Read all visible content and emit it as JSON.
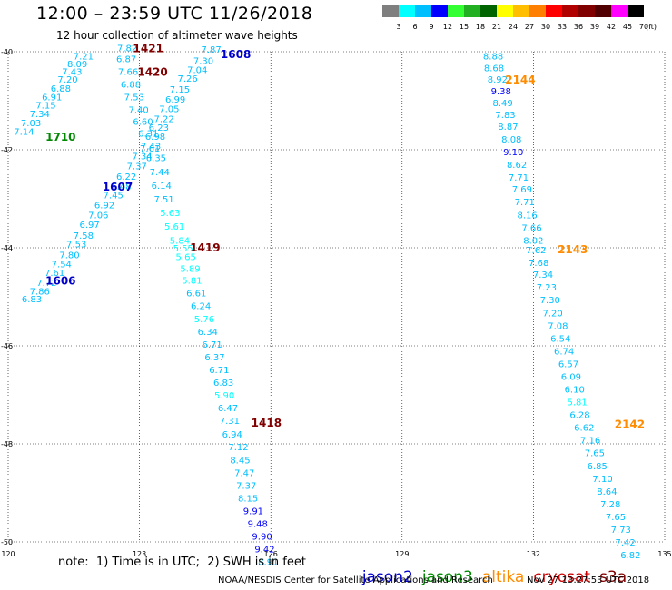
{
  "header": {
    "title": "12:00 – 23:59 UTC 11/26/2018",
    "subtitle": "12 hour collection of altimeter wave heights"
  },
  "legend": {
    "unit": "(ft)",
    "ticks": [
      "3",
      "6",
      "9",
      "12",
      "15",
      "18",
      "21",
      "24",
      "27",
      "30",
      "33",
      "36",
      "39",
      "42",
      "45",
      "70"
    ],
    "colors": [
      "#7f7f7f",
      "#00ffff",
      "#00bfff",
      "#0000ff",
      "#33ff33",
      "#22b022",
      "#006400",
      "#ffff00",
      "#ffbf00",
      "#ff8000",
      "#ff0000",
      "#b00000",
      "#800000",
      "#500000",
      "#ff00ff",
      "#000000"
    ]
  },
  "footer": {
    "note": "note:  1) Time is in UTC;  2) SWH is in feet",
    "satellites": [
      {
        "name": "jason2",
        "color": "#0000cc"
      },
      {
        "name": "jason3",
        "color": "#008800"
      },
      {
        "name": "altika",
        "color": "#ff8c00"
      },
      {
        "name": "cryosat",
        "color": "#cc0000"
      },
      {
        "name": "s3a",
        "color": "#800000"
      }
    ],
    "credit": "NOAA/NESDIS Center for Satellite Applications and Research",
    "timestamp": "Nov 27 13:27:53 UTC 2018"
  },
  "chart_data": {
    "type": "scatter",
    "title": "12:00 – 23:59 UTC 11/26/2018",
    "subtitle": "12 hour collection of altimeter wave heights",
    "xlabel": "",
    "ylabel": "",
    "xlim": [
      120,
      135
    ],
    "ylim": [
      -50,
      -40
    ],
    "x_ticks": [
      "120",
      "123",
      "126",
      "129",
      "132",
      "135"
    ],
    "y_ticks": [
      "-40",
      "-42",
      "-44",
      "-46",
      "-48",
      "-50"
    ],
    "grid": true,
    "legend_placement": "bottom",
    "pass_labels": [
      {
        "label": "1421",
        "x": 123.2,
        "y": -39.92,
        "color": "#800000"
      },
      {
        "label": "1420",
        "x": 123.3,
        "y": -40.4,
        "color": "#800000"
      },
      {
        "label": "1608",
        "x": 125.2,
        "y": -40.04,
        "color": "#0000cc"
      },
      {
        "label": "1710",
        "x": 121.2,
        "y": -41.72,
        "color": "#008800"
      },
      {
        "label": "1607",
        "x": 122.5,
        "y": -42.74,
        "color": "#0000cc"
      },
      {
        "label": "1419",
        "x": 124.5,
        "y": -43.98,
        "color": "#800000"
      },
      {
        "label": "1606",
        "x": 121.2,
        "y": -44.66,
        "color": "#0000cc"
      },
      {
        "label": "1418",
        "x": 125.9,
        "y": -47.56,
        "color": "#800000"
      },
      {
        "label": "2144",
        "x": 131.7,
        "y": -40.56,
        "color": "#ff8c00"
      },
      {
        "label": "2143",
        "x": 132.9,
        "y": -44.02,
        "color": "#ff8c00"
      },
      {
        "label": "2142",
        "x": 134.2,
        "y": -47.58,
        "color": "#ff8c00"
      }
    ],
    "points": [
      {
        "x": 122.72,
        "y": -39.92,
        "v": "7.82"
      },
      {
        "x": 122.7,
        "y": -40.14,
        "v": "6.87"
      },
      {
        "x": 122.74,
        "y": -40.4,
        "v": "7.66"
      },
      {
        "x": 122.8,
        "y": -40.66,
        "v": "6.88"
      },
      {
        "x": 122.88,
        "y": -40.92,
        "v": "7.53"
      },
      {
        "x": 122.98,
        "y": -41.18,
        "v": "7.40"
      },
      {
        "x": 123.08,
        "y": -41.42,
        "v": "6.60"
      },
      {
        "x": 123.2,
        "y": -41.66,
        "v": "6.31"
      },
      {
        "x": 123.26,
        "y": -41.92,
        "v": "7.43"
      },
      {
        "x": 123.38,
        "y": -42.16,
        "v": "6.35"
      },
      {
        "x": 123.46,
        "y": -42.44,
        "v": "7.44"
      },
      {
        "x": 123.5,
        "y": -42.72,
        "v": "6.14"
      },
      {
        "x": 123.56,
        "y": -43.0,
        "v": "7.51"
      },
      {
        "x": 123.7,
        "y": -43.28,
        "v": "5.63"
      },
      {
        "x": 123.8,
        "y": -43.56,
        "v": "5.61"
      },
      {
        "x": 123.92,
        "y": -43.84,
        "v": "5.84"
      },
      {
        "x": 124.0,
        "y": -44.0,
        "v": "5.55"
      },
      {
        "x": 124.06,
        "y": -44.18,
        "v": "5.65"
      },
      {
        "x": 124.16,
        "y": -44.42,
        "v": "5.89"
      },
      {
        "x": 124.2,
        "y": -44.66,
        "v": "5.81"
      },
      {
        "x": 124.3,
        "y": -44.92,
        "v": "6.61"
      },
      {
        "x": 124.4,
        "y": -45.18,
        "v": "6.24"
      },
      {
        "x": 124.48,
        "y": -45.44,
        "v": "5.76"
      },
      {
        "x": 124.56,
        "y": -45.7,
        "v": "6.34"
      },
      {
        "x": 124.66,
        "y": -45.96,
        "v": "6.71"
      },
      {
        "x": 124.72,
        "y": -46.22,
        "v": "6.37"
      },
      {
        "x": 124.82,
        "y": -46.48,
        "v": "6.71"
      },
      {
        "x": 124.92,
        "y": -46.74,
        "v": "6.83"
      },
      {
        "x": 124.94,
        "y": -47.0,
        "v": "5.90"
      },
      {
        "x": 125.02,
        "y": -47.26,
        "v": "6.47"
      },
      {
        "x": 125.06,
        "y": -47.52,
        "v": "7.31"
      },
      {
        "x": 125.12,
        "y": -47.8,
        "v": "6.94"
      },
      {
        "x": 125.26,
        "y": -48.06,
        "v": "7.12"
      },
      {
        "x": 125.3,
        "y": -48.32,
        "v": "8.45"
      },
      {
        "x": 125.4,
        "y": -48.58,
        "v": "7.47"
      },
      {
        "x": 125.44,
        "y": -48.84,
        "v": "7.37"
      },
      {
        "x": 125.48,
        "y": -49.1,
        "v": "8.15"
      },
      {
        "x": 125.6,
        "y": -49.36,
        "v": "9.91"
      },
      {
        "x": 125.7,
        "y": -49.62,
        "v": "9.48"
      },
      {
        "x": 125.8,
        "y": -49.88,
        "v": "9.90"
      },
      {
        "x": 125.86,
        "y": -50.14,
        "v": "9.42"
      },
      {
        "x": 125.94,
        "y": -50.4,
        "v": "8.91"
      },
      {
        "x": 124.64,
        "y": -39.94,
        "v": "7.87"
      },
      {
        "x": 124.46,
        "y": -40.18,
        "v": "7.30"
      },
      {
        "x": 124.32,
        "y": -40.36,
        "v": "7.04"
      },
      {
        "x": 124.1,
        "y": -40.54,
        "v": "7.26"
      },
      {
        "x": 123.92,
        "y": -40.76,
        "v": "7.15"
      },
      {
        "x": 123.82,
        "y": -40.96,
        "v": "6.99"
      },
      {
        "x": 123.68,
        "y": -41.16,
        "v": "7.05"
      },
      {
        "x": 123.56,
        "y": -41.36,
        "v": "7.22"
      },
      {
        "x": 123.44,
        "y": -41.54,
        "v": "6.23"
      },
      {
        "x": 123.36,
        "y": -41.72,
        "v": "6.98"
      },
      {
        "x": 123.24,
        "y": -41.96,
        "v": "7.61"
      },
      {
        "x": 123.06,
        "y": -42.12,
        "v": "7.34"
      },
      {
        "x": 122.94,
        "y": -42.32,
        "v": "7.37"
      },
      {
        "x": 122.7,
        "y": -42.54,
        "v": "6.22"
      },
      {
        "x": 122.58,
        "y": -42.74,
        "v": "6.48"
      },
      {
        "x": 122.4,
        "y": -42.92,
        "v": "7.45"
      },
      {
        "x": 122.2,
        "y": -43.12,
        "v": "6.92"
      },
      {
        "x": 122.06,
        "y": -43.32,
        "v": "7.06"
      },
      {
        "x": 121.86,
        "y": -43.52,
        "v": "6.97"
      },
      {
        "x": 121.72,
        "y": -43.74,
        "v": "7.58"
      },
      {
        "x": 121.56,
        "y": -43.92,
        "v": "7.53"
      },
      {
        "x": 121.4,
        "y": -44.14,
        "v": "7.80"
      },
      {
        "x": 121.22,
        "y": -44.32,
        "v": "7.54"
      },
      {
        "x": 121.06,
        "y": -44.5,
        "v": "7.61"
      },
      {
        "x": 120.88,
        "y": -44.7,
        "v": "7.72"
      },
      {
        "x": 120.72,
        "y": -44.88,
        "v": "7.86"
      },
      {
        "x": 120.54,
        "y": -45.04,
        "v": "6.83"
      },
      {
        "x": 121.72,
        "y": -40.08,
        "v": "7.21"
      },
      {
        "x": 121.58,
        "y": -40.24,
        "v": "8.09"
      },
      {
        "x": 121.46,
        "y": -40.4,
        "v": "7.43"
      },
      {
        "x": 121.36,
        "y": -40.56,
        "v": "7.20"
      },
      {
        "x": 121.2,
        "y": -40.74,
        "v": "6.88"
      },
      {
        "x": 121.0,
        "y": -40.92,
        "v": "6.91"
      },
      {
        "x": 120.86,
        "y": -41.08,
        "v": "7.15"
      },
      {
        "x": 120.72,
        "y": -41.26,
        "v": "7.34"
      },
      {
        "x": 120.52,
        "y": -41.44,
        "v": "7.03"
      },
      {
        "x": 120.36,
        "y": -41.62,
        "v": "7.14"
      },
      {
        "x": 131.08,
        "y": -40.08,
        "v": "8.88"
      },
      {
        "x": 131.1,
        "y": -40.32,
        "v": "8.68"
      },
      {
        "x": 131.18,
        "y": -40.56,
        "v": "8.92"
      },
      {
        "x": 131.26,
        "y": -40.8,
        "v": "9.38"
      },
      {
        "x": 131.3,
        "y": -41.04,
        "v": "8.49"
      },
      {
        "x": 131.36,
        "y": -41.28,
        "v": "7.83"
      },
      {
        "x": 131.42,
        "y": -41.52,
        "v": "8.87"
      },
      {
        "x": 131.5,
        "y": -41.78,
        "v": "8.08"
      },
      {
        "x": 131.54,
        "y": -42.04,
        "v": "9.10"
      },
      {
        "x": 131.62,
        "y": -42.3,
        "v": "8.62"
      },
      {
        "x": 131.66,
        "y": -42.56,
        "v": "7.71"
      },
      {
        "x": 131.74,
        "y": -42.8,
        "v": "7.69"
      },
      {
        "x": 131.8,
        "y": -43.06,
        "v": "7.71"
      },
      {
        "x": 131.86,
        "y": -43.32,
        "v": "8.16"
      },
      {
        "x": 131.96,
        "y": -43.58,
        "v": "7.66"
      },
      {
        "x": 132.0,
        "y": -43.84,
        "v": "8.02"
      },
      {
        "x": 132.06,
        "y": -44.04,
        "v": "7.62"
      },
      {
        "x": 132.12,
        "y": -44.3,
        "v": "7.68"
      },
      {
        "x": 132.22,
        "y": -44.54,
        "v": "7.34"
      },
      {
        "x": 132.3,
        "y": -44.8,
        "v": "7.23"
      },
      {
        "x": 132.38,
        "y": -45.06,
        "v": "7.30"
      },
      {
        "x": 132.44,
        "y": -45.32,
        "v": "7.20"
      },
      {
        "x": 132.56,
        "y": -45.58,
        "v": "7.08"
      },
      {
        "x": 132.62,
        "y": -45.84,
        "v": "6.54"
      },
      {
        "x": 132.7,
        "y": -46.1,
        "v": "6.74"
      },
      {
        "x": 132.8,
        "y": -46.36,
        "v": "6.57"
      },
      {
        "x": 132.86,
        "y": -46.62,
        "v": "6.09"
      },
      {
        "x": 132.94,
        "y": -46.88,
        "v": "6.10"
      },
      {
        "x": 133.0,
        "y": -47.14,
        "v": "5.81"
      },
      {
        "x": 133.06,
        "y": -47.4,
        "v": "6.28"
      },
      {
        "x": 133.16,
        "y": -47.66,
        "v": "6.62"
      },
      {
        "x": 133.3,
        "y": -47.92,
        "v": "7.16"
      },
      {
        "x": 133.4,
        "y": -48.18,
        "v": "7.65"
      },
      {
        "x": 133.46,
        "y": -48.44,
        "v": "6.85"
      },
      {
        "x": 133.58,
        "y": -48.7,
        "v": "7.10"
      },
      {
        "x": 133.68,
        "y": -48.96,
        "v": "8.64"
      },
      {
        "x": 133.76,
        "y": -49.22,
        "v": "7.28"
      },
      {
        "x": 133.88,
        "y": -49.48,
        "v": "7.65"
      },
      {
        "x": 134.0,
        "y": -49.74,
        "v": "7.73"
      },
      {
        "x": 134.1,
        "y": -50.0,
        "v": "7.42"
      },
      {
        "x": 134.22,
        "y": -50.26,
        "v": "6.82"
      }
    ]
  }
}
